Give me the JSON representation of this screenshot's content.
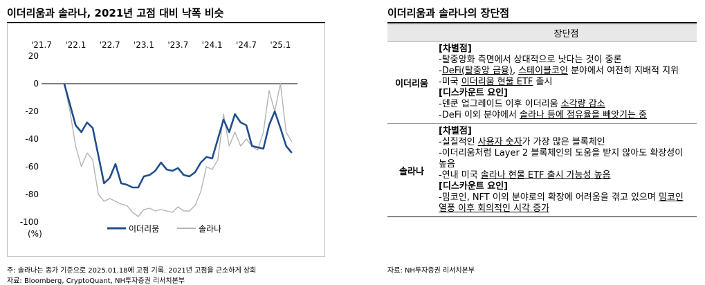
{
  "left": {
    "title": "이더리움과 솔라나, 2021년 고점 대비 낙폭 비슷",
    "notes": [
      "주: 솔라나는 종가 기준으로 2025.01.18에 고점 기록. 2021년 고점을 근소하게 상회",
      "자료: Bloomberg, CryptoQuant, NH투자증권 리서치본부"
    ]
  },
  "chart_data": {
    "type": "line",
    "title": "이더리움과 솔라나, 2021년 고점 대비 낙폭 비슷",
    "ylabel": "(%)",
    "xlabel": "",
    "x_ticks": [
      "'21.7",
      "'22.1",
      "'22.7",
      "'23.1",
      "'23.7",
      "'24.1",
      "'24.7",
      "'25.1"
    ],
    "y_ticks": [
      20,
      0,
      -20,
      -40,
      -60,
      -80,
      -100
    ],
    "ylim": [
      -100,
      20
    ],
    "xlim": [
      "2021-07",
      "2025-04"
    ],
    "legend_position": "bottom-right",
    "grid": false,
    "series": [
      {
        "name": "이더리움",
        "color": "#1f4e8c",
        "points": [
          [
            "2021-11",
            0
          ],
          [
            "2021-12",
            -15
          ],
          [
            "2022-01",
            -30
          ],
          [
            "2022-02",
            -35
          ],
          [
            "2022-03",
            -28
          ],
          [
            "2022-04",
            -32
          ],
          [
            "2022-05",
            -52
          ],
          [
            "2022-06",
            -72
          ],
          [
            "2022-07",
            -68
          ],
          [
            "2022-08",
            -58
          ],
          [
            "2022-09",
            -72
          ],
          [
            "2022-10",
            -73
          ],
          [
            "2022-11",
            -75
          ],
          [
            "2022-12",
            -75
          ],
          [
            "2023-01",
            -67
          ],
          [
            "2023-02",
            -66
          ],
          [
            "2023-03",
            -63
          ],
          [
            "2023-04",
            -57
          ],
          [
            "2023-05",
            -62
          ],
          [
            "2023-06",
            -63
          ],
          [
            "2023-07",
            -61
          ],
          [
            "2023-08",
            -66
          ],
          [
            "2023-09",
            -67
          ],
          [
            "2023-10",
            -64
          ],
          [
            "2023-11",
            -57
          ],
          [
            "2023-12",
            -53
          ],
          [
            "2024-01",
            -54
          ],
          [
            "2024-02",
            -40
          ],
          [
            "2024-03",
            -26
          ],
          [
            "2024-04",
            -35
          ],
          [
            "2024-05",
            -22
          ],
          [
            "2024-06",
            -28
          ],
          [
            "2024-07",
            -30
          ],
          [
            "2024-08",
            -45
          ],
          [
            "2024-09",
            -46
          ],
          [
            "2024-10",
            -47
          ],
          [
            "2024-11",
            -30
          ],
          [
            "2024-12",
            -20
          ],
          [
            "2025-01",
            -32
          ],
          [
            "2025-02",
            -45
          ],
          [
            "2025-03",
            -50
          ]
        ]
      },
      {
        "name": "솔라나",
        "color": "#b4b4b4",
        "points": [
          [
            "2021-11",
            0
          ],
          [
            "2021-12",
            -20
          ],
          [
            "2022-01",
            -45
          ],
          [
            "2022-02",
            -60
          ],
          [
            "2022-03",
            -50
          ],
          [
            "2022-04",
            -55
          ],
          [
            "2022-05",
            -80
          ],
          [
            "2022-06",
            -85
          ],
          [
            "2022-07",
            -83
          ],
          [
            "2022-08",
            -85
          ],
          [
            "2022-09",
            -87
          ],
          [
            "2022-10",
            -88
          ],
          [
            "2022-11",
            -93
          ],
          [
            "2022-12",
            -96
          ],
          [
            "2023-01",
            -91
          ],
          [
            "2023-02",
            -90
          ],
          [
            "2023-03",
            -92
          ],
          [
            "2023-04",
            -91
          ],
          [
            "2023-05",
            -92
          ],
          [
            "2023-06",
            -93
          ],
          [
            "2023-07",
            -89
          ],
          [
            "2023-08",
            -92
          ],
          [
            "2023-09",
            -92
          ],
          [
            "2023-10",
            -88
          ],
          [
            "2023-11",
            -78
          ],
          [
            "2023-12",
            -60
          ],
          [
            "2024-01",
            -62
          ],
          [
            "2024-02",
            -55
          ],
          [
            "2024-03",
            -22
          ],
          [
            "2024-04",
            -45
          ],
          [
            "2024-05",
            -35
          ],
          [
            "2024-06",
            -45
          ],
          [
            "2024-07",
            -40
          ],
          [
            "2024-08",
            -45
          ],
          [
            "2024-09",
            -48
          ],
          [
            "2024-10",
            -35
          ],
          [
            "2024-11",
            -5
          ],
          [
            "2024-12",
            -20
          ],
          [
            "2025-01",
            0
          ],
          [
            "2025-02",
            -35
          ],
          [
            "2025-03",
            -42
          ]
        ]
      }
    ]
  },
  "right": {
    "title": "이더리움과 솔라나의 장단점",
    "header": "장단점",
    "source": "자료: NH투자증권 리서치본부",
    "rows": [
      {
        "label": "이더리움",
        "lines": [
          {
            "type": "sec",
            "text": "[차별점]"
          },
          {
            "type": "line",
            "parts": [
              {
                "t": "-탈중앙화 측면에서 상대적으로 낫다는 것이 중론"
              }
            ]
          },
          {
            "type": "line",
            "parts": [
              {
                "t": "-"
              },
              {
                "t": "DeFi(탈중앙 금융)",
                "u": true
              },
              {
                "t": ", "
              },
              {
                "t": "스테이블코인",
                "u": true
              },
              {
                "t": " 분야에서 여전히 지배적 지위"
              }
            ]
          },
          {
            "type": "line",
            "parts": [
              {
                "t": "-미국 "
              },
              {
                "t": "이더리움 현물 ETF",
                "u": true
              },
              {
                "t": " 출시"
              }
            ]
          },
          {
            "type": "sec",
            "text": "[디스카운트 요인]"
          },
          {
            "type": "line",
            "parts": [
              {
                "t": "-덴쿤 업그레이드 이후 이더리움 "
              },
              {
                "t": "소각량 감소",
                "u": true
              }
            ]
          },
          {
            "type": "line",
            "parts": [
              {
                "t": "-DeFi 이외 분야에서 "
              },
              {
                "t": "솔라나 등에 점유율을 빼앗기는 중",
                "u": true
              }
            ]
          }
        ]
      },
      {
        "label": "솔라나",
        "lines": [
          {
            "type": "sec",
            "text": "[차별점]"
          },
          {
            "type": "line",
            "parts": [
              {
                "t": "-실질적인 "
              },
              {
                "t": "사용자 숫자",
                "u": true
              },
              {
                "t": "가 가장 많은 블록체인"
              }
            ]
          },
          {
            "type": "line",
            "parts": [
              {
                "t": "-이더리움처럼 Layer 2 블록체인의 도움을 받지 않아도 확장성이 높음"
              }
            ]
          },
          {
            "type": "line",
            "parts": [
              {
                "t": "-연내 미국 "
              },
              {
                "t": "솔라나 현물 ETF 출시 가능성 높음",
                "u": true
              }
            ]
          },
          {
            "type": "sec",
            "text": "[디스카운트 요인]"
          },
          {
            "type": "line",
            "parts": [
              {
                "t": "-밈코인, NFT 이외 분야로의 확장에 어려움을 겪고 있으며 "
              },
              {
                "t": "밈코인 열풍 이후 회의적인 시각 증가",
                "u": true
              }
            ]
          }
        ]
      }
    ]
  }
}
